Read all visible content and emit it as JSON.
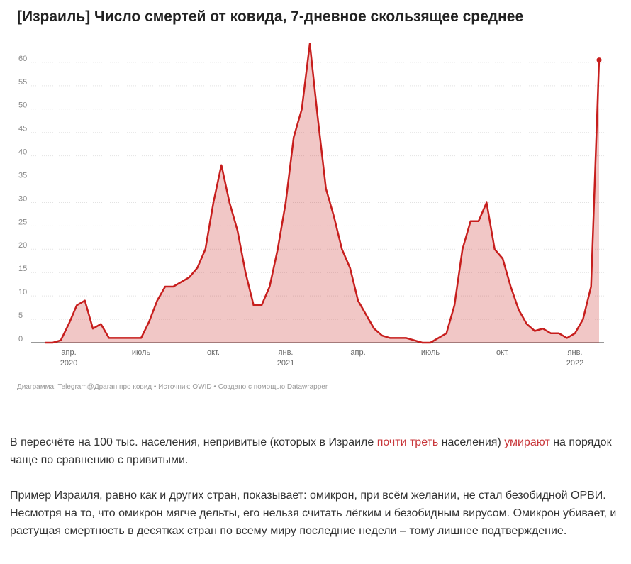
{
  "chart_data": {
    "type": "area",
    "title": "[Израиль] Число смертей от ковида, 7-дневное скользящее среднее",
    "caption": "Диаграмма: Telegram@Драган про ковид • Источник: OWID • Создано с помощью Datawrapper",
    "categories": [
      null,
      null,
      null,
      "апр.\n2020",
      null,
      null,
      null,
      null,
      null,
      null,
      null,
      null,
      "июль",
      null,
      null,
      null,
      null,
      null,
      null,
      null,
      null,
      "окт.",
      null,
      null,
      null,
      null,
      null,
      null,
      null,
      null,
      "янв.\n2021",
      null,
      null,
      null,
      null,
      null,
      null,
      null,
      null,
      "апр.",
      null,
      null,
      null,
      null,
      null,
      null,
      null,
      null,
      "июль",
      null,
      null,
      null,
      null,
      null,
      null,
      null,
      null,
      "окт.",
      null,
      null,
      null,
      null,
      null,
      null,
      null,
      null,
      "янв.\n2022",
      null,
      null,
      null
    ],
    "series": [
      {
        "name": "Число смертей",
        "color": "#c71e1d",
        "values": [
          0,
          0,
          0.5,
          4,
          8,
          9,
          3,
          4,
          1,
          1,
          1,
          1,
          1,
          4.5,
          9,
          12,
          12,
          13,
          14,
          16,
          20,
          30,
          38,
          30,
          24,
          15,
          8,
          8,
          12,
          20,
          30,
          44,
          50,
          64,
          48,
          33,
          27,
          20,
          16,
          9,
          6,
          3,
          1.5,
          1,
          1,
          1,
          0.5,
          0,
          0,
          1,
          2,
          8,
          20,
          26,
          26,
          30,
          20,
          18,
          12,
          7,
          4,
          2.5,
          3,
          2,
          2,
          1,
          2,
          5,
          12,
          60.5
        ]
      }
    ],
    "ylim": [
      0,
      65
    ],
    "yticks": [
      0,
      5,
      10,
      15,
      20,
      25,
      30,
      35,
      40,
      45,
      50,
      55,
      60
    ],
    "grid": true
  },
  "article": {
    "paragraph1": [
      "В пересчёте на 100 тыс. населения, непривитые (которых в Израиле ",
      "почти треть",
      " населения) ",
      "умирают",
      " на порядок чаще по сравнению с привитыми."
    ],
    "paragraph2": "Пример Израиля, равно как и других стран, показывает: омикрон, при всём желании, не стал безобидной ОРВИ. Несмотря на то, что омикрон мягче дельты, его нельзя считать лёгким и безобидным вирусом. Омикрон убивает, и растущая смертность в десятках стран по всему миру последние недели – тому лишнее подтверждение."
  }
}
